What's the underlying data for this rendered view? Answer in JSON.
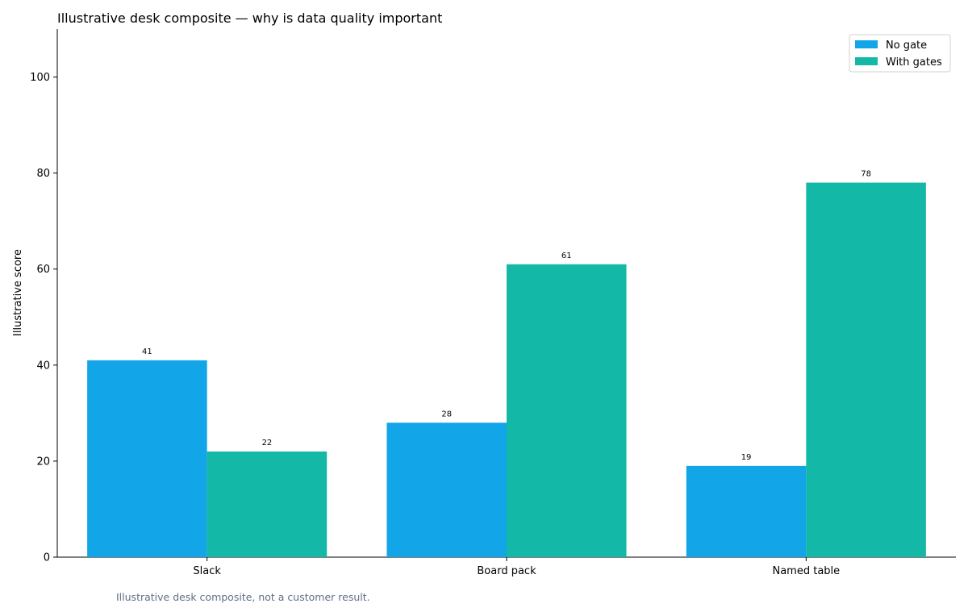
{
  "chart_data": {
    "type": "bar",
    "title": "Illustrative desk composite — why is data quality important",
    "xlabel": "",
    "ylabel": "Illustrative score",
    "categories": [
      "Slack",
      "Board pack",
      "Named table"
    ],
    "series": [
      {
        "name": "No gate",
        "values": [
          41,
          28,
          19
        ],
        "color": "#12a5e8"
      },
      {
        "name": "With gates",
        "values": [
          22,
          61,
          78
        ],
        "color": "#14b8a6"
      }
    ],
    "ylim": [
      0,
      110
    ],
    "yticks": [
      0,
      20,
      40,
      60,
      80,
      100
    ],
    "grid": false,
    "legend": "top-right",
    "footnote": "Illustrative desk composite, not a customer result."
  }
}
